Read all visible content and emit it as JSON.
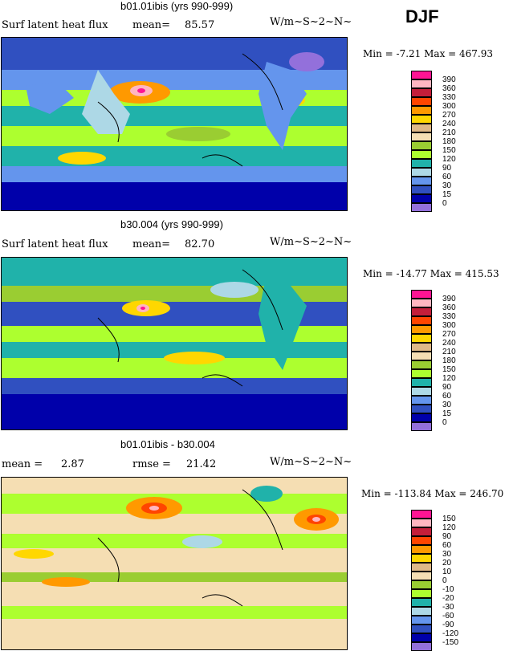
{
  "season": "DJF",
  "panels": [
    {
      "title": "b01.01ibis (yrs 990-999)",
      "left_label": "Surf latent heat flux",
      "mean_label": "mean=",
      "mean_value": "85.57",
      "units": "W/m~S~2~N~",
      "min_max": "Min =  -7.21 Max = 467.93",
      "legend": [
        "390",
        "360",
        "330",
        "300",
        "270",
        "240",
        "210",
        "180",
        "150",
        "120",
        "90",
        "60",
        "30",
        "15",
        "0"
      ],
      "colors": [
        "#ff1493",
        "#ffb6c1",
        "#c41e3a",
        "#ff4500",
        "#ff9900",
        "#ffd700",
        "#deb887",
        "#f5deb3",
        "#9acd32",
        "#adff2f",
        "#20b2aa",
        "#add8e6",
        "#6495ed",
        "#3050c0",
        "#0000aa",
        "#9370db"
      ]
    },
    {
      "title": "b30.004 (yrs 990-999)",
      "left_label": "Surf latent heat flux",
      "mean_label": "mean=",
      "mean_value": "82.70",
      "units": "W/m~S~2~N~",
      "min_max": "Min = -14.77 Max = 415.53",
      "legend": [
        "390",
        "360",
        "330",
        "300",
        "270",
        "240",
        "210",
        "180",
        "150",
        "120",
        "90",
        "60",
        "30",
        "15",
        "0"
      ],
      "colors": [
        "#ff1493",
        "#ffb6c1",
        "#c41e3a",
        "#ff4500",
        "#ff9900",
        "#ffd700",
        "#deb887",
        "#f5deb3",
        "#9acd32",
        "#adff2f",
        "#20b2aa",
        "#add8e6",
        "#6495ed",
        "#3050c0",
        "#0000aa",
        "#9370db"
      ]
    },
    {
      "title": "b01.01ibis - b30.004",
      "mean_label": "mean =",
      "mean_value": "2.87",
      "rmse_label": "rmse =",
      "rmse_value": "21.42",
      "units": "W/m~S~2~N~",
      "min_max": "Min = -113.84 Max = 246.70",
      "legend": [
        "150",
        "120",
        "90",
        "60",
        "30",
        "20",
        "10",
        "0",
        "-10",
        "-20",
        "-30",
        "-60",
        "-90",
        "-120",
        "-150"
      ],
      "colors": [
        "#ff1493",
        "#ffb6c1",
        "#c41e3a",
        "#ff4500",
        "#ff9900",
        "#ffd700",
        "#deb887",
        "#f5deb3",
        "#9acd32",
        "#adff2f",
        "#20b2aa",
        "#add8e6",
        "#6495ed",
        "#3050c0",
        "#0000aa",
        "#9370db"
      ]
    }
  ],
  "chart_data": [
    {
      "type": "heatmap",
      "title": "b01.01ibis (yrs 990-999)",
      "variable": "Surf latent heat flux",
      "units": "W/m~S~2~N~",
      "mean": 85.57,
      "min": -7.21,
      "max": 467.93,
      "contour_levels": [
        0,
        15,
        30,
        60,
        90,
        120,
        150,
        180,
        210,
        240,
        270,
        300,
        330,
        360,
        390
      ]
    },
    {
      "type": "heatmap",
      "title": "b30.004 (yrs 990-999)",
      "variable": "Surf latent heat flux",
      "units": "W/m~S~2~N~",
      "mean": 82.7,
      "min": -14.77,
      "max": 415.53,
      "contour_levels": [
        0,
        15,
        30,
        60,
        90,
        120,
        150,
        180,
        210,
        240,
        270,
        300,
        330,
        360,
        390
      ]
    },
    {
      "type": "heatmap",
      "title": "b01.01ibis - b30.004",
      "units": "W/m~S~2~N~",
      "mean": 2.87,
      "rmse": 21.42,
      "min": -113.84,
      "max": 246.7,
      "contour_levels": [
        -150,
        -120,
        -90,
        -60,
        -30,
        -20,
        -10,
        0,
        10,
        20,
        30,
        60,
        90,
        120,
        150
      ]
    }
  ]
}
